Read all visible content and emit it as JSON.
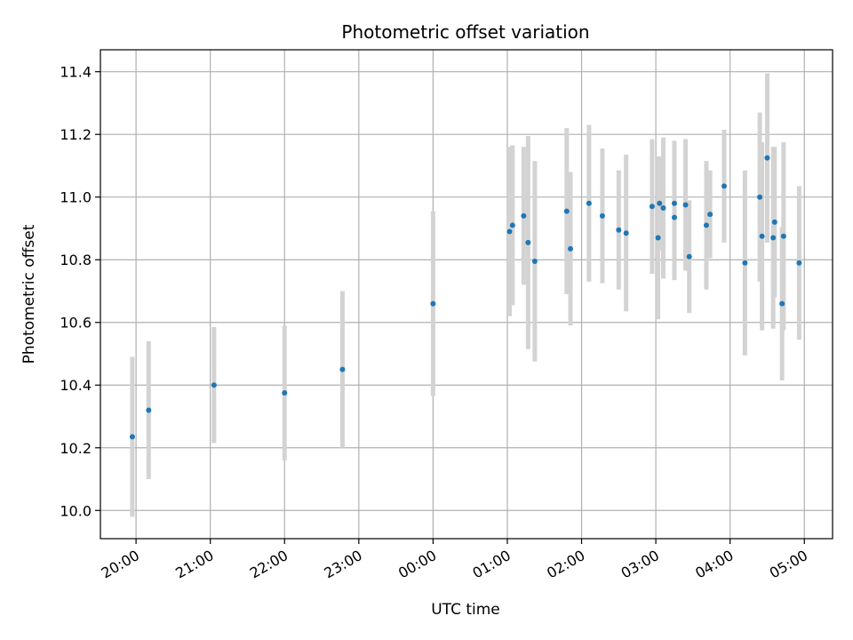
{
  "chart_data": {
    "type": "scatter",
    "title": "Photometric offset variation",
    "xlabel": "UTC time",
    "ylabel": "Photometric offset",
    "x_tick_labels": [
      "20:00",
      "21:00",
      "22:00",
      "23:00",
      "00:00",
      "01:00",
      "02:00",
      "03:00",
      "04:00",
      "05:00"
    ],
    "x_ticks_hours": [
      20,
      21,
      22,
      23,
      24,
      25,
      26,
      27,
      28,
      29
    ],
    "xlim_hours": [
      19.52,
      29.38
    ],
    "ylim": [
      9.91,
      11.47
    ],
    "y_ticks": [
      10.0,
      10.2,
      10.4,
      10.6,
      10.8,
      11.0,
      11.2,
      11.4
    ],
    "y_tick_labels": [
      "10.0",
      "10.2",
      "10.4",
      "10.6",
      "10.8",
      "11.0",
      "11.2",
      "11.4"
    ],
    "grid": true,
    "point_color": "#1f77b4",
    "errorbar_color": "#d3d3d3",
    "points": [
      {
        "t": 19.95,
        "y": 10.235,
        "err": 0.255
      },
      {
        "t": 20.17,
        "y": 10.32,
        "err": 0.22
      },
      {
        "t": 21.05,
        "y": 10.4,
        "err": 0.185
      },
      {
        "t": 22.0,
        "y": 10.375,
        "err": 0.215
      },
      {
        "t": 22.78,
        "y": 10.45,
        "err": 0.25
      },
      {
        "t": 24.0,
        "y": 10.66,
        "err": 0.295
      },
      {
        "t": 25.03,
        "y": 10.89,
        "err": 0.27
      },
      {
        "t": 25.07,
        "y": 10.91,
        "err": 0.255
      },
      {
        "t": 25.22,
        "y": 10.94,
        "err": 0.22
      },
      {
        "t": 25.28,
        "y": 10.855,
        "err": 0.34
      },
      {
        "t": 25.37,
        "y": 10.795,
        "err": 0.32
      },
      {
        "t": 25.8,
        "y": 10.955,
        "err": 0.265
      },
      {
        "t": 25.85,
        "y": 10.835,
        "err": 0.245
      },
      {
        "t": 26.1,
        "y": 10.98,
        "err": 0.25
      },
      {
        "t": 26.28,
        "y": 10.94,
        "err": 0.215
      },
      {
        "t": 26.5,
        "y": 10.895,
        "err": 0.19
      },
      {
        "t": 26.6,
        "y": 10.885,
        "err": 0.25
      },
      {
        "t": 26.95,
        "y": 10.97,
        "err": 0.215
      },
      {
        "t": 27.03,
        "y": 10.87,
        "err": 0.26
      },
      {
        "t": 27.05,
        "y": 10.98,
        "err": 0.15
      },
      {
        "t": 27.1,
        "y": 10.965,
        "err": 0.225
      },
      {
        "t": 27.25,
        "y": 10.935,
        "err": 0.2
      },
      {
        "t": 27.25,
        "y": 10.98,
        "err": 0.2
      },
      {
        "t": 27.4,
        "y": 10.975,
        "err": 0.21
      },
      {
        "t": 27.45,
        "y": 10.81,
        "err": 0.18
      },
      {
        "t": 27.68,
        "y": 10.91,
        "err": 0.205
      },
      {
        "t": 27.73,
        "y": 10.945,
        "err": 0.14
      },
      {
        "t": 27.92,
        "y": 11.035,
        "err": 0.18
      },
      {
        "t": 28.2,
        "y": 10.79,
        "err": 0.295
      },
      {
        "t": 28.4,
        "y": 11.0,
        "err": 0.27
      },
      {
        "t": 28.43,
        "y": 10.875,
        "err": 0.3
      },
      {
        "t": 28.5,
        "y": 11.125,
        "err": 0.27
      },
      {
        "t": 28.58,
        "y": 10.87,
        "err": 0.29
      },
      {
        "t": 28.6,
        "y": 10.92,
        "err": 0.24
      },
      {
        "t": 28.7,
        "y": 10.66,
        "err": 0.245
      },
      {
        "t": 28.72,
        "y": 10.875,
        "err": 0.3
      },
      {
        "t": 28.93,
        "y": 10.79,
        "err": 0.245
      }
    ]
  }
}
